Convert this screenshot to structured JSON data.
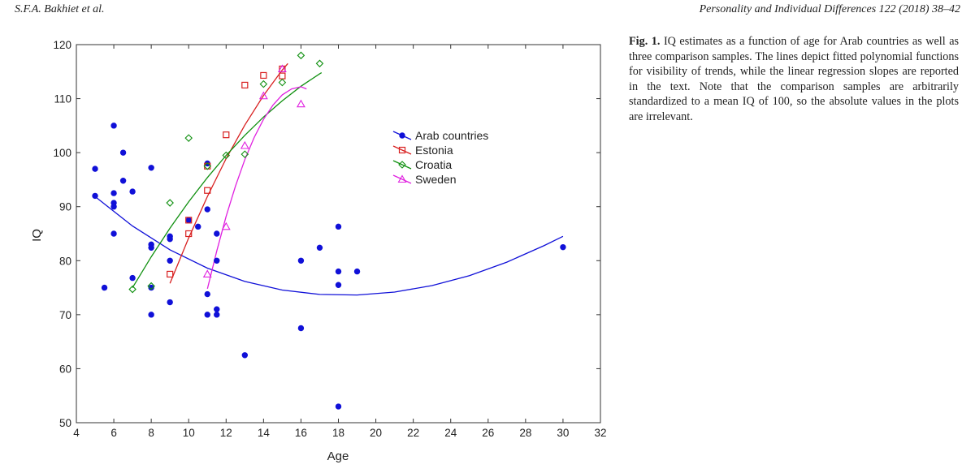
{
  "header": {
    "authors": "S.F.A. Bakhiet et al.",
    "journal": "Personality and Individual Differences 122 (2018) 38–42"
  },
  "caption": {
    "label": "Fig. 1.",
    "text": " IQ estimates as a function of age for Arab countries as well as three comparison samples. The lines depict fitted poly­nomial functions for visibility of trends, while the linear re­gression slopes are reported in the text. Note that the comparison samples are arbitrarily standardized to a mean IQ of 100, so the absolute values in the plots are irrelevant."
  },
  "chart_data": {
    "type": "scatter",
    "xlabel": "Age",
    "ylabel": "IQ",
    "xlim": [
      4,
      32
    ],
    "ylim": [
      50,
      120
    ],
    "xticks": [
      4,
      6,
      8,
      10,
      12,
      14,
      16,
      18,
      20,
      22,
      24,
      26,
      28,
      30,
      32
    ],
    "yticks": [
      50,
      60,
      70,
      80,
      90,
      100,
      110,
      120
    ],
    "legend_position": "upper-center-right",
    "series": [
      {
        "name": "Arab countries",
        "marker": "filled-circle",
        "color": "#1010d8",
        "points": [
          [
            5,
            97
          ],
          [
            5,
            92
          ],
          [
            5.5,
            75
          ],
          [
            6,
            105
          ],
          [
            6,
            92.5
          ],
          [
            6,
            90.7
          ],
          [
            6,
            90
          ],
          [
            6,
            85
          ],
          [
            6.5,
            100
          ],
          [
            6.5,
            94.8
          ],
          [
            7,
            92.8
          ],
          [
            7,
            76.8
          ],
          [
            8,
            97.2
          ],
          [
            8,
            83
          ],
          [
            8,
            82.4
          ],
          [
            8,
            75
          ],
          [
            8,
            70
          ],
          [
            9,
            84.5
          ],
          [
            9,
            84
          ],
          [
            9,
            80
          ],
          [
            9,
            72.3
          ],
          [
            10,
            87.5
          ],
          [
            10.5,
            86.3
          ],
          [
            11,
            98
          ],
          [
            11,
            89.5
          ],
          [
            11,
            73.8
          ],
          [
            11,
            70
          ],
          [
            11.5,
            85
          ],
          [
            11.5,
            80
          ],
          [
            11.5,
            71
          ],
          [
            11.5,
            70
          ],
          [
            13,
            62.5
          ],
          [
            16,
            80
          ],
          [
            16,
            67.5
          ],
          [
            17,
            82.4
          ],
          [
            18,
            86.3
          ],
          [
            18,
            78
          ],
          [
            18,
            75.5
          ],
          [
            18,
            53
          ],
          [
            19,
            78
          ],
          [
            30,
            82.5
          ]
        ],
        "fit": [
          [
            5,
            91.86
          ],
          [
            7,
            86.41
          ],
          [
            9,
            82.01
          ],
          [
            11,
            78.61
          ],
          [
            13,
            76.15
          ],
          [
            15,
            74.56
          ],
          [
            17,
            73.75
          ],
          [
            19,
            73.64
          ],
          [
            21,
            74.19
          ],
          [
            23,
            75.39
          ],
          [
            25,
            77.24
          ],
          [
            27,
            79.72
          ],
          [
            29,
            82.81
          ],
          [
            30,
            84.5
          ]
        ]
      },
      {
        "name": "Estonia",
        "marker": "open-square",
        "color": "#d82020",
        "points": [
          [
            9,
            77.5
          ],
          [
            10,
            85
          ],
          [
            10,
            87.5
          ],
          [
            11,
            93
          ],
          [
            11,
            97.5
          ],
          [
            12,
            103.3
          ],
          [
            13,
            112.5
          ],
          [
            14,
            114.3
          ],
          [
            15,
            114.2
          ],
          [
            15,
            115.5
          ]
        ],
        "fit": [
          [
            9,
            75.8
          ],
          [
            10,
            84.2
          ],
          [
            11,
            91.9
          ],
          [
            12,
            98.9
          ],
          [
            13,
            105.1
          ],
          [
            14,
            110.6
          ],
          [
            15,
            115.3
          ],
          [
            15.3,
            116.5
          ]
        ]
      },
      {
        "name": "Croatia",
        "marker": "open-diamond",
        "color": "#109010",
        "points": [
          [
            7,
            74.7
          ],
          [
            8,
            75.3
          ],
          [
            9,
            90.7
          ],
          [
            10,
            102.7
          ],
          [
            11,
            97.5
          ],
          [
            12,
            99.5
          ],
          [
            13,
            99.7
          ],
          [
            14,
            112.7
          ],
          [
            15,
            113
          ],
          [
            16,
            118
          ],
          [
            17,
            116.5
          ]
        ],
        "fit": [
          [
            7,
            75
          ],
          [
            8,
            80.7
          ],
          [
            9,
            86
          ],
          [
            10,
            90.9
          ],
          [
            11,
            95.4
          ],
          [
            12,
            99.5
          ],
          [
            13,
            103.2
          ],
          [
            14,
            106.6
          ],
          [
            15,
            109.6
          ],
          [
            16,
            112.3
          ],
          [
            17,
            114.6
          ],
          [
            17.1,
            114.8
          ]
        ]
      },
      {
        "name": "Sweden",
        "marker": "open-triangle",
        "color": "#e020e0",
        "points": [
          [
            11,
            77.5
          ],
          [
            12,
            86.3
          ],
          [
            13,
            101.3
          ],
          [
            14,
            110.5
          ],
          [
            15,
            115.5
          ],
          [
            16,
            109
          ]
        ],
        "fit": [
          [
            11,
            74.8
          ],
          [
            11.5,
            81.8
          ],
          [
            12,
            88.2
          ],
          [
            12.5,
            93.8
          ],
          [
            13,
            98.7
          ],
          [
            13.5,
            102.8
          ],
          [
            14,
            106.2
          ],
          [
            14.5,
            108.8
          ],
          [
            15,
            110.7
          ],
          [
            15.5,
            111.8
          ],
          [
            16,
            112.2
          ],
          [
            16.3,
            111.8
          ]
        ]
      }
    ]
  }
}
